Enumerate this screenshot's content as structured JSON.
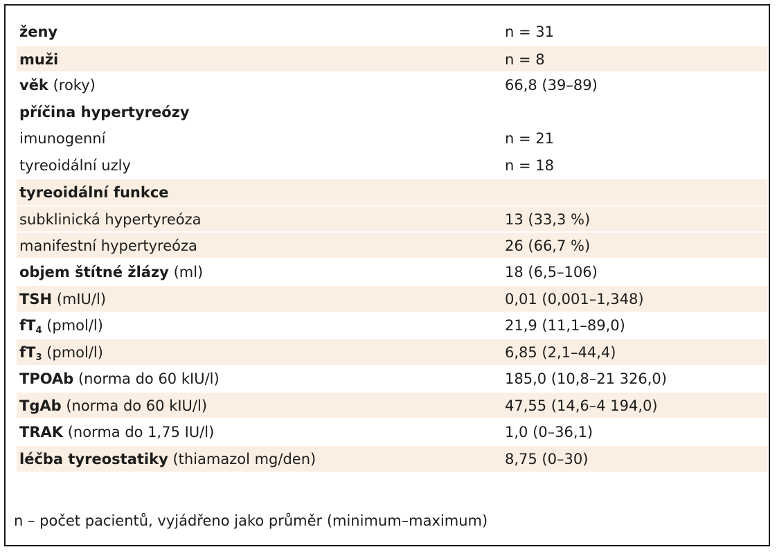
{
  "rows": [
    {
      "bold": "ženy",
      "normal": "",
      "value": "n = 31",
      "shaded": false
    },
    {
      "bold": "muži",
      "normal": "",
      "value": "n = 8",
      "shaded": true
    },
    {
      "bold": "věk",
      "normal": " (roky)",
      "value": "66,8 (39–89)",
      "shaded": false
    },
    {
      "bold": "příčina hypertyreózy",
      "normal": "",
      "value": "",
      "shaded": false
    },
    {
      "bold": "",
      "normal": "imunogenní",
      "value": "n = 21",
      "shaded": false
    },
    {
      "bold": "",
      "normal": "tyreoidální uzly",
      "value": "n = 18",
      "shaded": false
    },
    {
      "bold": "tyreoidální funkce",
      "normal": "",
      "value": "",
      "shaded": true
    },
    {
      "bold": "",
      "normal": "subklinická hypertyreóza",
      "value": "13 (33,3 %)",
      "shaded": true
    },
    {
      "bold": "",
      "normal": "manifestní hypertyreóza",
      "value": "26 (66,7 %)",
      "shaded": true
    },
    {
      "bold": "objem štítné žlázy",
      "normal": " (ml)",
      "value": "18 (6,5–106)",
      "shaded": false
    },
    {
      "bold": "TSH",
      "normal": " (mIU/l)",
      "value": "0,01 (0,001–1,348)",
      "shaded": true
    },
    {
      "bold": "fT",
      "sub": "4",
      "normal": " (pmol/l)",
      "value": "21,9 (11,1–89,0)",
      "shaded": false
    },
    {
      "bold": "fT",
      "sub": "3",
      "normal": " (pmol/l)",
      "value": "6,85 (2,1–44,4)",
      "shaded": true
    },
    {
      "bold": "TPOAb",
      "normal": " (norma do 60 kIU/l)",
      "value": "185,0 (10,8–21 326,0)",
      "shaded": false
    },
    {
      "bold": "TgAb",
      "normal": " (norma do 60 kIU/l)",
      "value": "47,55 (14,6–4 194,0)",
      "shaded": true
    },
    {
      "bold": "TRAK",
      "normal": " (norma do 1,75 IU/l)",
      "value": "1,0 (0–36,1)",
      "shaded": false
    },
    {
      "bold": "léčba tyreostatiky",
      "normal": " (thiamazol mg/den)",
      "value": "8,75 (0–30)",
      "shaded": true
    }
  ],
  "footnote": "n – počet pacientů, vyjádřeno jako průměr (minimum–maximum)",
  "colors": {
    "shaded_row": "#fbefe3",
    "border": "#1a1a1a",
    "text": "#1c1c1c"
  }
}
